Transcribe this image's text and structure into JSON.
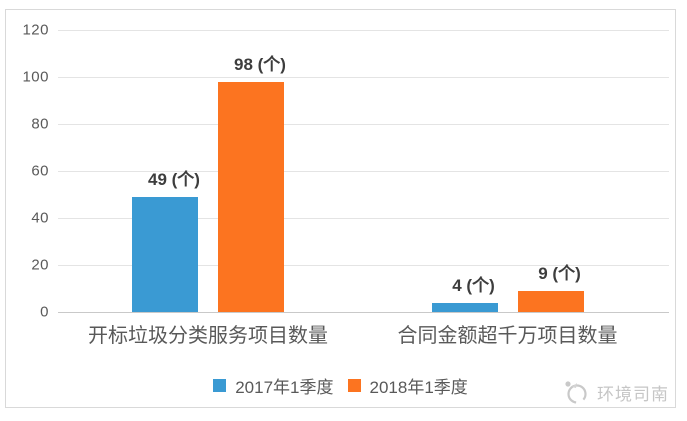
{
  "watermark": {
    "text": "环境司南"
  },
  "chart_data": {
    "type": "bar",
    "title": "",
    "categories": [
      "开标垃圾分类服务项目数量",
      "合同金额超千万项目数量"
    ],
    "series": [
      {
        "name": "2017年1季度",
        "color": "#3a9ad3",
        "values": [
          49,
          4
        ]
      },
      {
        "name": "2018年1季度",
        "color": "#fc7420",
        "values": [
          98,
          9
        ]
      }
    ],
    "data_label_suffix": " (个)",
    "data_labels": [
      "49 (个)",
      "98 (个)",
      "4 (个)",
      "9 (个)"
    ],
    "yticks": [
      0,
      20,
      40,
      60,
      80,
      100,
      120
    ],
    "ylim": [
      0,
      120
    ],
    "xlabel": "",
    "ylabel": "",
    "grid": true,
    "legend_position": "bottom"
  },
  "colors": {
    "series_2017": "#3a9ad3",
    "series_2018": "#fc7420",
    "gridline": "#e4e4e4",
    "axis_text": "#595959",
    "data_label_text": "#3d3d3d",
    "frame_border": "#d9d9d9",
    "watermark": "#c6c6c6"
  }
}
